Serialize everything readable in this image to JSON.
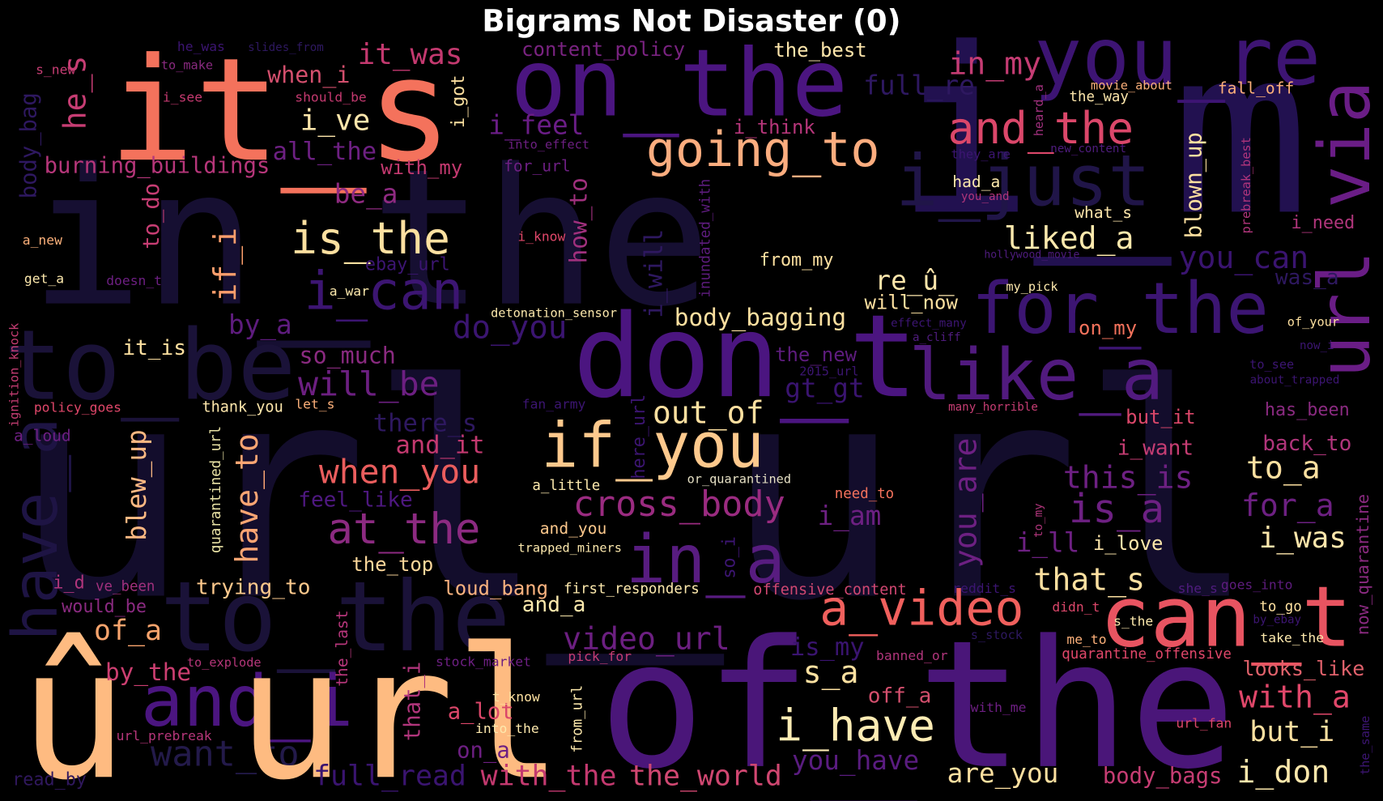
{
  "title": "Bigrams Not Disaster (0)",
  "words": [
    {
      "text": "url_url",
      "color": "#130d2c"
    },
    {
      "text": "in_the",
      "color": "#160f32"
    },
    {
      "text": "i_m",
      "color": "#221150"
    },
    {
      "text": "to_be",
      "color": "#1a1238"
    },
    {
      "text": "to_the",
      "color": "#1a1238"
    },
    {
      "text": "i_just",
      "color": "#201548"
    },
    {
      "text": "have_a",
      "color": "#1e1444"
    },
    {
      "text": "want_to",
      "color": "#231a4a"
    },
    {
      "text": "of_the",
      "color": "#4a1679"
    },
    {
      "text": "don_t",
      "color": "#4b1580"
    },
    {
      "text": "on_the",
      "color": "#4b1580"
    },
    {
      "text": "you_re",
      "color": "#3d1473"
    },
    {
      "text": "for_the",
      "color": "#3c1572"
    },
    {
      "text": "like_a",
      "color": "#511a7e"
    },
    {
      "text": "url_via",
      "color": "#6a1d86"
    },
    {
      "text": "and_i",
      "color": "#4b1580"
    },
    {
      "text": "in_a",
      "color": "#581c80"
    },
    {
      "text": "i_can",
      "color": "#3c1572"
    },
    {
      "text": "it_s",
      "color": "#f4725c"
    },
    {
      "text": "û_url",
      "color": "#febb81"
    },
    {
      "text": "can_t",
      "color": "#e85461"
    },
    {
      "text": "a_video",
      "color": "#f0605d"
    },
    {
      "text": "if_you",
      "color": "#fec98d"
    },
    {
      "text": "going_to",
      "color": "#fcad7f"
    },
    {
      "text": "is_the",
      "color": "#fde0a0"
    },
    {
      "text": "and_the",
      "color": "#db476a"
    },
    {
      "text": "in_my",
      "color": "#c53c73"
    },
    {
      "text": "it_was",
      "color": "#c3396f"
    },
    {
      "text": "i_ve",
      "color": "#fde6ab"
    },
    {
      "text": "he_s",
      "color": "#c63d73"
    },
    {
      "text": "when_i",
      "color": "#d34f6d"
    },
    {
      "text": "burning_buildings",
      "color": "#b6367a"
    },
    {
      "text": "all_the",
      "color": "#6d2082"
    },
    {
      "text": "with_my",
      "color": "#c3396f"
    },
    {
      "text": "be_a",
      "color": "#8f2a81"
    },
    {
      "text": "to_do",
      "color": "#c63d73"
    },
    {
      "text": "if_i",
      "color": "#fc9e6c"
    },
    {
      "text": "by_a",
      "color": "#5e1c7e"
    },
    {
      "text": "it_is",
      "color": "#fde0a0"
    },
    {
      "text": "so_much",
      "color": "#8a2a80"
    },
    {
      "text": "will_be",
      "color": "#6c1f81"
    },
    {
      "text": "do_you",
      "color": "#3b1571"
    },
    {
      "text": "at_the",
      "color": "#8c2a81"
    },
    {
      "text": "when_you",
      "color": "#ea5d5d"
    },
    {
      "text": "blew_up",
      "color": "#fbb882"
    },
    {
      "text": "have_to",
      "color": "#fba573"
    },
    {
      "text": "and_it",
      "color": "#c3396f"
    },
    {
      "text": "there_s",
      "color": "#2e1860"
    },
    {
      "text": "feel_like",
      "color": "#4e1880"
    },
    {
      "text": "quarantined_url",
      "color": "#e9e2a5"
    },
    {
      "text": "i_d",
      "color": "#b0357b"
    },
    {
      "text": "ve_been",
      "color": "#a0307d"
    },
    {
      "text": "would_be",
      "color": "#8a2a80"
    },
    {
      "text": "of_a",
      "color": "#f9a46d"
    },
    {
      "text": "by_the",
      "color": "#cc3f71"
    },
    {
      "text": "to_explode",
      "color": "#b6367a"
    },
    {
      "text": "the_last",
      "color": "#b6367a"
    },
    {
      "text": "trying_to",
      "color": "#fcc88c"
    },
    {
      "text": "the_top",
      "color": "#fdd89b"
    },
    {
      "text": "loud_bang",
      "color": "#fcb37f"
    },
    {
      "text": "and_a",
      "color": "#fde9ad"
    },
    {
      "text": "first_responders",
      "color": "#fde9ad"
    },
    {
      "text": "offensive_content",
      "color": "#d04771"
    },
    {
      "text": "video_url",
      "color": "#6c1f81"
    },
    {
      "text": "stock_market",
      "color": "#6d1f82"
    },
    {
      "text": "pick_for",
      "color": "#c63d73"
    },
    {
      "text": "is_my",
      "color": "#3a1470"
    },
    {
      "text": "s_a",
      "color": "#fde1a1"
    },
    {
      "text": "off_a",
      "color": "#d34f6d"
    },
    {
      "text": "i_have",
      "color": "#fdecb4"
    },
    {
      "text": "you_have",
      "color": "#5a1c80"
    },
    {
      "text": "are_you",
      "color": "#fde0a0"
    },
    {
      "text": "body_bags",
      "color": "#c63d73"
    },
    {
      "text": "i_don",
      "color": "#fde8ac"
    },
    {
      "text": "but_i",
      "color": "#fde1a1"
    },
    {
      "text": "with_a",
      "color": "#e0476a"
    },
    {
      "text": "looks_like",
      "color": "#e0616b"
    },
    {
      "text": "take_the",
      "color": "#fde9ad"
    },
    {
      "text": "by_ebay",
      "color": "#3c1572"
    },
    {
      "text": "to_go",
      "color": "#fde0a0"
    },
    {
      "text": "goes_into",
      "color": "#5e1c7e"
    },
    {
      "text": "she_s",
      "color": "#4f1c7e"
    },
    {
      "text": "now_quarantine",
      "color": "#8a2a80"
    },
    {
      "text": "the_same",
      "color": "#3c1572"
    },
    {
      "text": "url_fan",
      "color": "#db476a"
    },
    {
      "text": "quarantine_offensive",
      "color": "#e0476a"
    },
    {
      "text": "me_to",
      "color": "#fcb07a"
    },
    {
      "text": "s_the",
      "color": "#fde9ad"
    },
    {
      "text": "didn_t",
      "color": "#db476a"
    },
    {
      "text": "banned_or",
      "color": "#b0357b"
    },
    {
      "text": "with_me",
      "color": "#6d1f82"
    },
    {
      "text": "a_lot",
      "color": "#db476a"
    },
    {
      "text": "that_i",
      "color": "#b0357b"
    },
    {
      "text": "t_know",
      "color": "#fde0a0"
    },
    {
      "text": "from_url",
      "color": "#fde9ad"
    },
    {
      "text": "into_the",
      "color": "#fde9ad"
    },
    {
      "text": "on_a",
      "color": "#6d1f82"
    },
    {
      "text": "with_the",
      "color": "#c3396f"
    },
    {
      "text": "the_world",
      "color": "#d04771"
    },
    {
      "text": "full_read",
      "color": "#3a1470"
    },
    {
      "text": "url_prebreak",
      "color": "#b6367a"
    },
    {
      "text": "read_by",
      "color": "#30185e"
    },
    {
      "text": "cross_body",
      "color": "#9a2b80"
    },
    {
      "text": "out_of",
      "color": "#fde0a0"
    },
    {
      "text": "here_url",
      "color": "#3c1572"
    },
    {
      "text": "fan_army",
      "color": "#3c1572"
    },
    {
      "text": "a_little",
      "color": "#fde9ad"
    },
    {
      "text": "or_quarantined",
      "color": "#e7e1c5"
    },
    {
      "text": "and_you",
      "color": "#fcc88c"
    },
    {
      "text": "trapped_miners",
      "color": "#fde9ad"
    },
    {
      "text": "so_i",
      "color": "#3c1572"
    },
    {
      "text": "need_to",
      "color": "#f4725c"
    },
    {
      "text": "i_am",
      "color": "#6d2082"
    },
    {
      "text": "you_are",
      "color": "#6d2082"
    },
    {
      "text": "i_ll",
      "color": "#6d2082"
    },
    {
      "text": "i_love",
      "color": "#fde6ab"
    },
    {
      "text": "to_my",
      "color": "#b0357b"
    },
    {
      "text": "that_s",
      "color": "#fde0a0"
    },
    {
      "text": "reddit_s",
      "color": "#3c1572"
    },
    {
      "text": "s_stock",
      "color": "#2e1860"
    },
    {
      "text": "is_a",
      "color": "#6d2082"
    },
    {
      "text": "this_is",
      "color": "#6d2082"
    },
    {
      "text": "i_want",
      "color": "#c63d73"
    },
    {
      "text": "but_it",
      "color": "#db476a"
    },
    {
      "text": "to_a",
      "color": "#fde0a0"
    },
    {
      "text": "back_to",
      "color": "#b0357b"
    },
    {
      "text": "has_been",
      "color": "#8a2a80"
    },
    {
      "text": "for_a",
      "color": "#6d2082"
    },
    {
      "text": "i_was",
      "color": "#fde6ab"
    },
    {
      "text": "many_horrible",
      "color": "#c63d73"
    },
    {
      "text": "about_trapped",
      "color": "#3c1572"
    },
    {
      "text": "to_see",
      "color": "#3c1572"
    },
    {
      "text": "now_i",
      "color": "#3c1572"
    },
    {
      "text": "of_your",
      "color": "#fde0a0"
    },
    {
      "text": "was_a",
      "color": "#2e1860"
    },
    {
      "text": "you_can",
      "color": "#3a1470"
    },
    {
      "text": "on_my",
      "color": "#f4725c"
    },
    {
      "text": "liked_a",
      "color": "#fde9ad"
    },
    {
      "text": "blown_up",
      "color": "#fde0a0"
    },
    {
      "text": "prebreak_best",
      "color": "#b0357b"
    },
    {
      "text": "i_need",
      "color": "#b0357b"
    },
    {
      "text": "what_s",
      "color": "#fde6ab"
    },
    {
      "text": "had_a",
      "color": "#fde9ad"
    },
    {
      "text": "you_and",
      "color": "#b0357b"
    },
    {
      "text": "they_are",
      "color": "#3c1572"
    },
    {
      "text": "new_content",
      "color": "#4f1c7e"
    },
    {
      "text": "hollywood_movie",
      "color": "#4f1c7e"
    },
    {
      "text": "my_pick",
      "color": "#fde9ad"
    },
    {
      "text": "re_û_",
      "color": "#fde6ab"
    },
    {
      "text": "will_now",
      "color": "#fde0a0"
    },
    {
      "text": "effect_many",
      "color": "#3c1572"
    },
    {
      "text": "a_cliff",
      "color": "#4f1c7e"
    },
    {
      "text": "the_new",
      "color": "#5e1c7e"
    },
    {
      "text": "2015_url",
      "color": "#3c1572"
    },
    {
      "text": "gt_gt",
      "color": "#3a1470"
    },
    {
      "text": "full_re",
      "color": "#2e1860"
    },
    {
      "text": "heard_a",
      "color": "#a0307d"
    },
    {
      "text": "movie_about",
      "color": "#fcb07a"
    },
    {
      "text": "the_way",
      "color": "#fde6ab"
    },
    {
      "text": "fall_off",
      "color": "#fcb07a"
    },
    {
      "text": "the_best",
      "color": "#fde6ab"
    },
    {
      "text": "i_think",
      "color": "#b6367a"
    },
    {
      "text": "content_policy",
      "color": "#7a2381"
    },
    {
      "text": "i_feel",
      "color": "#6a1d86"
    },
    {
      "text": "into_effect",
      "color": "#6d1f82"
    },
    {
      "text": "for_url",
      "color": "#6d1f82"
    },
    {
      "text": "how_to",
      "color": "#a0307d"
    },
    {
      "text": "i_will",
      "color": "#2e1860"
    },
    {
      "text": "inundated_with",
      "color": "#5e1c7e"
    },
    {
      "text": "from_my",
      "color": "#fde0a0"
    },
    {
      "text": "body_bagging",
      "color": "#fde0a0"
    },
    {
      "text": "detonation_sensor",
      "color": "#fde9ad"
    },
    {
      "text": "i_know",
      "color": "#e0476a"
    },
    {
      "text": "ebay_url",
      "color": "#3c1572"
    },
    {
      "text": "a_war",
      "color": "#fde9ad"
    },
    {
      "text": "doesn_t",
      "color": "#6d1f82"
    },
    {
      "text": "get_a",
      "color": "#fde9ad"
    },
    {
      "text": "a_new",
      "color": "#fcb07a"
    },
    {
      "text": "body_bag",
      "color": "#2e1860"
    },
    {
      "text": "s_new",
      "color": "#c63d73"
    },
    {
      "text": "to_make",
      "color": "#8a2a80"
    },
    {
      "text": "he_was",
      "color": "#3c1572"
    },
    {
      "text": "slides_from",
      "color": "#2e1860"
    },
    {
      "text": "should_be",
      "color": "#c3396f"
    },
    {
      "text": "i_see",
      "color": "#c3396f"
    },
    {
      "text": "i_got",
      "color": "#fde0a0"
    },
    {
      "text": "ignition_knock",
      "color": "#c63d73"
    },
    {
      "text": "a_loud",
      "color": "#6d1f82"
    },
    {
      "text": "policy_goes",
      "color": "#e0476a"
    },
    {
      "text": "thank_you",
      "color": "#fde6ab"
    },
    {
      "text": "let_s",
      "color": "#fcb07a"
    }
  ]
}
